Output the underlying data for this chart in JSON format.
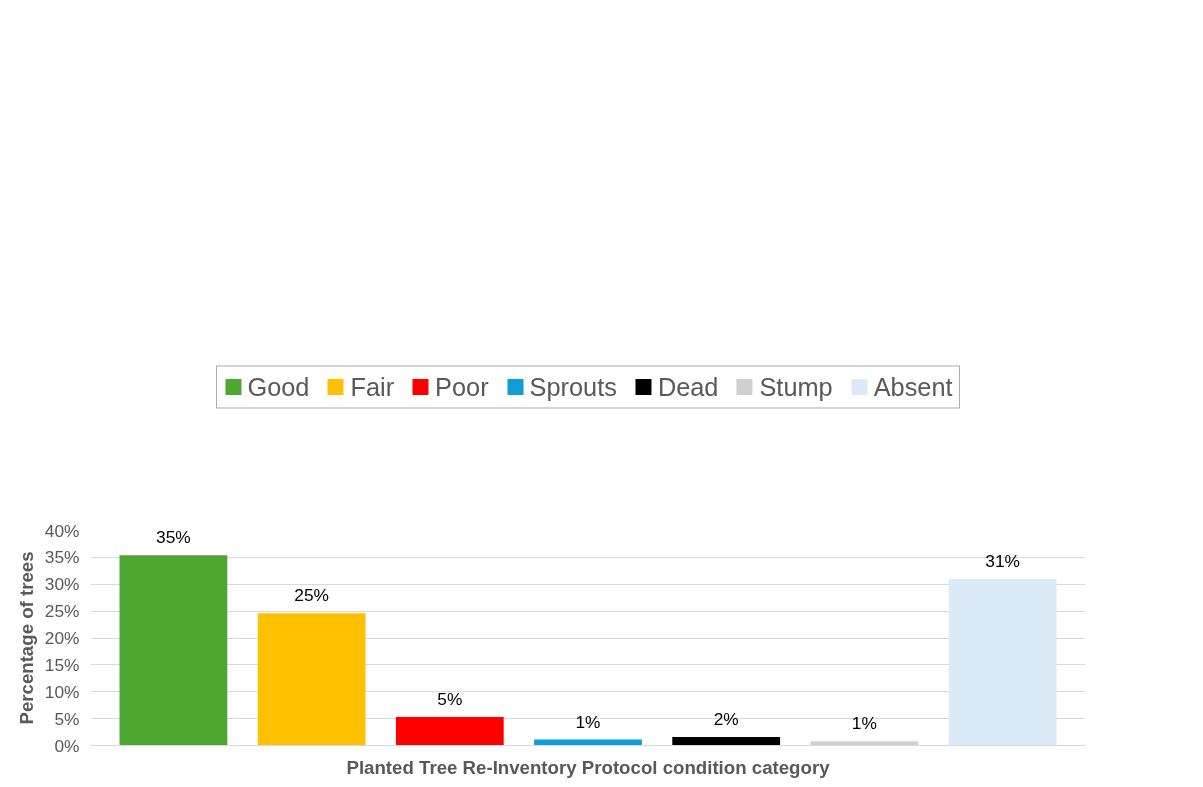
{
  "chart_data": {
    "type": "bar",
    "xlabel": "Planted Tree Re-Inventory Protocol condition category",
    "ylabel": "Percentage of trees",
    "categories": [
      null,
      null,
      null,
      null,
      null,
      null,
      null
    ],
    "series": [
      {
        "name": "Good",
        "color": "#4ea72e",
        "values": [
          35.4,
          null,
          null,
          null,
          null,
          null,
          null
        ],
        "value_labels": [
          "35%",
          null,
          null,
          null,
          null,
          null,
          null
        ]
      },
      {
        "name": "Fair",
        "color": "#ffc000",
        "values": [
          null,
          24.6,
          null,
          null,
          null,
          null,
          null
        ],
        "value_labels": [
          null,
          "25%",
          null,
          null,
          null,
          null,
          null
        ]
      },
      {
        "name": "Poor",
        "color": "#ff0000",
        "values": [
          null,
          null,
          5.3,
          null,
          null,
          null,
          null
        ],
        "value_labels": [
          null,
          null,
          "5%",
          null,
          null,
          null,
          null
        ]
      },
      {
        "name": "Sprouts",
        "color": "#0f9ed5",
        "values": [
          null,
          null,
          null,
          1.1,
          null,
          null,
          null
        ],
        "value_labels": [
          null,
          null,
          null,
          "1%",
          null,
          null,
          null
        ]
      },
      {
        "name": "Dead",
        "color": "#000000",
        "values": [
          null,
          null,
          null,
          null,
          1.6,
          null,
          null
        ],
        "value_labels": [
          null,
          null,
          null,
          null,
          "2%",
          null,
          null
        ]
      },
      {
        "name": "Stump",
        "color": "#d0d0d0",
        "values": [
          null,
          null,
          null,
          null,
          null,
          0.8,
          null
        ],
        "value_labels": [
          null,
          null,
          null,
          null,
          null,
          "1%",
          null
        ]
      },
      {
        "name": "Absent",
        "color": "#dce9f6",
        "values": [
          null,
          null,
          null,
          null,
          null,
          null,
          31.0
        ],
        "value_labels": [
          null,
          null,
          null,
          null,
          null,
          null,
          "31%"
        ]
      }
    ],
    "ylim": [
      0,
      40
    ],
    "yticks": [
      {
        "value": 0,
        "label": "0%"
      },
      {
        "value": 5,
        "label": "5%"
      },
      {
        "value": 10,
        "label": "10%"
      },
      {
        "value": 15,
        "label": "15%"
      },
      {
        "value": 20,
        "label": "20%"
      },
      {
        "value": 25,
        "label": "25%"
      },
      {
        "value": 30,
        "label": "30%"
      },
      {
        "value": 35,
        "label": "35%"
      },
      {
        "value": 40,
        "label": "40%"
      }
    ],
    "grid": "y",
    "legend": "top",
    "tick_labels": "y"
  }
}
